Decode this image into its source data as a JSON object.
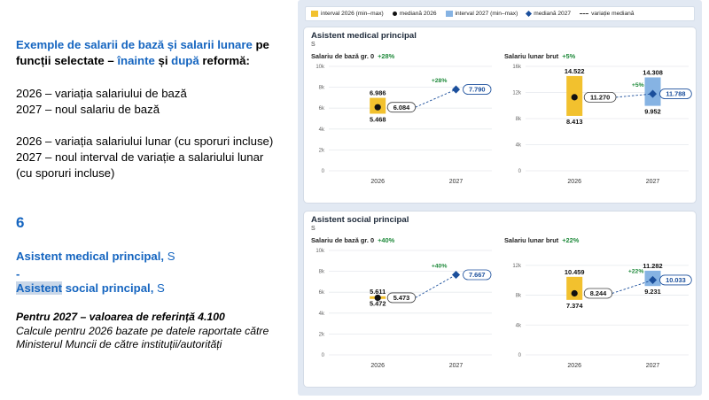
{
  "left": {
    "intro_1_blue": "Exemple de salarii de bază și salarii lunare",
    "intro_2_black": " pe funcții selectate – ",
    "intro_3_blue": "înainte",
    "intro_4_black": " și ",
    "intro_5_blue": "după",
    "intro_6_black": " reformă:",
    "line_2026_base": "2026 – variația salariului de bază",
    "line_2027_base": "2027 – noul salariu de bază",
    "line_2026_monthly": "2026 – variația salariului lunar (cu sporuri incluse)",
    "line_2027_monthly_a": "2027 – noul interval de variație a salariului lunar",
    "line_2027_monthly_b": "(cu sporuri incluse)",
    "number": "6",
    "job1_bold": "Asistent medical principal,",
    "job1_suffix": " S",
    "dash": "-",
    "job2_hl": "Asistent",
    "job2_bold": " social principal,",
    "job2_suffix": " S",
    "reference": "Pentru 2027 – valoarea de referință 4.100",
    "note": "Calcule pentru 2026 bazate pe datele raportate către Ministerul Muncii de către instituții/autorități"
  },
  "legend": {
    "range_2026": "interval 2026 (min–max)",
    "median_2026": "mediană 2026",
    "range_2027": "interval 2027 (min–max)",
    "median_2027": "mediană 2027",
    "median_var": "variație mediană"
  },
  "colors": {
    "range_2026": "#f2c12e",
    "range_2027": "#86b3e3",
    "median_2027": "#1b4f9c",
    "growth": "#1f8a3b",
    "panel_bg": "#e2e9f3"
  },
  "cards": [
    {
      "title": "Asistent medical principal",
      "subtitle": "S",
      "panels": [
        {
          "label": "Salariu de bază gr. 0",
          "pct": "+28%"
        },
        {
          "label": "Salariu lunar brut",
          "pct": "+5%"
        }
      ]
    },
    {
      "title": "Asistent social principal",
      "subtitle": "S",
      "panels": [
        {
          "label": "Salariu de bază gr. 0",
          "pct": "+40%"
        },
        {
          "label": "Salariu lunar brut",
          "pct": "+22%"
        }
      ]
    }
  ],
  "chart_data": [
    {
      "type": "range-median",
      "title": "Asistent medical principal — Salariu de bază gr. 0",
      "categories": [
        "2026",
        "2027"
      ],
      "ylim": [
        0,
        10000
      ],
      "y_ticks": [
        "0",
        "2k",
        "4k",
        "6k",
        "8k",
        "10k"
      ],
      "range_2026": {
        "min": 5468,
        "max": 6986,
        "min_label": "5.468",
        "max_label": "6.986"
      },
      "median_2026": {
        "value": 6084,
        "label": "6.084"
      },
      "median_2027": {
        "value": 7790,
        "label": "7.790"
      },
      "growth_label": "+28%",
      "grid": true
    },
    {
      "type": "range-median",
      "title": "Asistent medical principal — Salariu lunar brut",
      "categories": [
        "2026",
        "2027"
      ],
      "ylim": [
        0,
        16000
      ],
      "y_ticks": [
        "0",
        "4k",
        "8k",
        "12k",
        "16k"
      ],
      "range_2026": {
        "min": 8413,
        "max": 14522,
        "min_label": "8.413",
        "max_label": "14.522"
      },
      "median_2026": {
        "value": 11270,
        "label": "11.270"
      },
      "range_2027": {
        "min": 9952,
        "max": 14308,
        "min_label": "9.952",
        "max_label": "14.308"
      },
      "median_2027": {
        "value": 11788,
        "label": "11.788"
      },
      "growth_label": "+5%",
      "grid": true
    },
    {
      "type": "range-median",
      "title": "Asistent social principal — Salariu de bază gr. 0",
      "categories": [
        "2026",
        "2027"
      ],
      "ylim": [
        0,
        10000
      ],
      "y_ticks": [
        "0",
        "2k",
        "4k",
        "6k",
        "8k",
        "10k"
      ],
      "range_2026": {
        "min": 5472,
        "max": 5611,
        "min_label": "5.472",
        "max_label": "5.611"
      },
      "median_2026": {
        "value": 5473,
        "label": "5.473"
      },
      "median_2027": {
        "value": 7667,
        "label": "7.667"
      },
      "growth_label": "+40%",
      "grid": true
    },
    {
      "type": "range-median",
      "title": "Asistent social principal — Salariu lunar brut",
      "categories": [
        "2026",
        "2027"
      ],
      "ylim": [
        0,
        14000
      ],
      "y_ticks": [
        "0",
        "4k",
        "8k",
        "12k"
      ],
      "range_2026": {
        "min": 7374,
        "max": 10459,
        "min_label": "7.374",
        "max_label": "10.459"
      },
      "median_2026": {
        "value": 8244,
        "label": "8.244"
      },
      "range_2027": {
        "min": 9231,
        "max": 11282,
        "min_label": "9.231",
        "max_label": "11.282"
      },
      "median_2027": {
        "value": 10033,
        "label": "10.033"
      },
      "growth_label": "+22%",
      "grid": true
    }
  ]
}
